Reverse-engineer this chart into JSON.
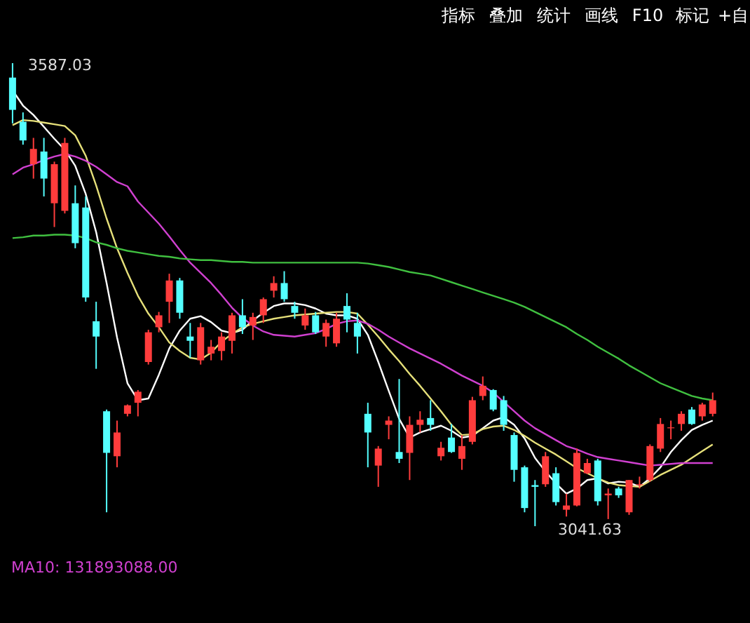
{
  "chart_data": {
    "type": "candlestick",
    "categories": [
      null,
      null,
      null,
      null,
      null,
      null,
      null,
      null,
      null,
      null,
      null,
      null,
      null,
      null,
      null,
      null,
      null,
      null,
      null,
      null,
      null,
      null,
      null,
      null,
      null,
      null,
      null,
      null,
      null,
      null,
      null,
      null,
      null,
      null,
      null,
      null,
      null,
      null,
      null,
      null,
      null,
      null,
      null,
      null,
      null,
      null,
      null,
      null,
      null,
      null,
      null,
      null,
      null,
      null,
      null,
      null,
      null,
      null,
      null,
      null,
      null,
      null,
      null,
      null,
      null,
      null,
      null,
      null
    ],
    "ohlc": [
      [
        3570,
        3587.03,
        3516,
        3532
      ],
      [
        3518,
        3529,
        3491,
        3496
      ],
      [
        3468,
        3499,
        3451,
        3486
      ],
      [
        3483,
        3499,
        3430,
        3451
      ],
      [
        3422,
        3471,
        3394,
        3468
      ],
      [
        3413,
        3499,
        3410,
        3493
      ],
      [
        3422,
        3443,
        3369,
        3375
      ],
      [
        3417,
        3430,
        3306,
        3311
      ],
      [
        3283,
        3306,
        3227,
        3265
      ],
      [
        3177,
        3179,
        3058,
        3128
      ],
      [
        3124,
        3166,
        3111,
        3152
      ],
      [
        3174,
        3185,
        3171,
        3184
      ],
      [
        3187,
        3202,
        3171,
        3200
      ],
      [
        3235,
        3273,
        3232,
        3270
      ],
      [
        3276,
        3294,
        3270,
        3290
      ],
      [
        3306,
        3339,
        3281,
        3331
      ],
      [
        3331,
        3334,
        3286,
        3293
      ],
      [
        3265,
        3281,
        3240,
        3260
      ],
      [
        3237,
        3281,
        3232,
        3276
      ],
      [
        3245,
        3261,
        3237,
        3253
      ],
      [
        3248,
        3270,
        3237,
        3265
      ],
      [
        3260,
        3293,
        3245,
        3290
      ],
      [
        3290,
        3309,
        3268,
        3276
      ],
      [
        3278,
        3293,
        3261,
        3288
      ],
      [
        3290,
        3311,
        3281,
        3309
      ],
      [
        3319,
        3336,
        3311,
        3328
      ],
      [
        3328,
        3342,
        3306,
        3309
      ],
      [
        3301,
        3306,
        3286,
        3293
      ],
      [
        3278,
        3298,
        3273,
        3290
      ],
      [
        3290,
        3294,
        3268,
        3270
      ],
      [
        3265,
        3285,
        3253,
        3281
      ],
      [
        3257,
        3293,
        3253,
        3286
      ],
      [
        3301,
        3316,
        3270,
        3285
      ],
      [
        3281,
        3293,
        3245,
        3265
      ],
      [
        3174,
        3187,
        3111,
        3152
      ],
      [
        3113,
        3136,
        3088,
        3133
      ],
      [
        3161,
        3171,
        3144,
        3166
      ],
      [
        3129,
        3215,
        3116,
        3121
      ],
      [
        3128,
        3171,
        3096,
        3161
      ],
      [
        3161,
        3177,
        3152,
        3167
      ],
      [
        3169,
        3190,
        3154,
        3161
      ],
      [
        3124,
        3141,
        3119,
        3134
      ],
      [
        3146,
        3162,
        3128,
        3129
      ],
      [
        3121,
        3149,
        3108,
        3136
      ],
      [
        3141,
        3194,
        3138,
        3190
      ],
      [
        3195,
        3218,
        3190,
        3207
      ],
      [
        3202,
        3203,
        3177,
        3179
      ],
      [
        3190,
        3195,
        3154,
        3161
      ],
      [
        3149,
        3152,
        3094,
        3108
      ],
      [
        3111,
        3113,
        3058,
        3063
      ],
      [
        3090,
        3096,
        3041.63,
        3088
      ],
      [
        3091,
        3129,
        3088,
        3124
      ],
      [
        3104,
        3111,
        3066,
        3070
      ],
      [
        3061,
        3080,
        3053,
        3066
      ],
      [
        3066,
        3133,
        3065,
        3128
      ],
      [
        3104,
        3121,
        3103,
        3116
      ],
      [
        3119,
        3121,
        3066,
        3071
      ],
      [
        3078,
        3086,
        3050,
        3080
      ],
      [
        3086,
        3088,
        3075,
        3078
      ],
      [
        3058,
        3096,
        3055,
        3096
      ],
      [
        3090,
        3100,
        3086,
        3091
      ],
      [
        3096,
        3138,
        3094,
        3136
      ],
      [
        3133,
        3169,
        3129,
        3162
      ],
      [
        3157,
        3166,
        3144,
        3158
      ],
      [
        3162,
        3177,
        3154,
        3174
      ],
      [
        3179,
        3182,
        3161,
        3162
      ],
      [
        3171,
        3187,
        3166,
        3185
      ],
      [
        3174,
        3199,
        3171,
        3190
      ]
    ],
    "colors": [
      "#54ffff",
      "#54ffff",
      "#ff3c3c",
      "#54ffff",
      "#ff3c3c",
      "#ff3c3c",
      "#54ffff",
      "#54ffff",
      "#54ffff",
      "#54ffff",
      "#ff3c3c",
      "#ff3c3c",
      "#ff3c3c",
      "#ff3c3c",
      "#ff3c3c",
      "#ff3c3c",
      "#54ffff",
      "#54ffff",
      "#ff3c3c",
      "#ff3c3c",
      "#ff3c3c",
      "#ff3c3c",
      "#54ffff",
      "#ff3c3c",
      "#ff3c3c",
      "#ff3c3c",
      "#54ffff",
      "#54ffff",
      "#ff3c3c",
      "#54ffff",
      "#ff3c3c",
      "#ff3c3c",
      "#54ffff",
      "#54ffff",
      "#54ffff",
      "#ff3c3c",
      "#ff3c3c",
      "#54ffff",
      "#ff3c3c",
      "#ff3c3c",
      "#54ffff",
      "#ff3c3c",
      "#54ffff",
      "#ff3c3c",
      "#ff3c3c",
      "#ff3c3c",
      "#54ffff",
      "#54ffff",
      "#54ffff",
      "#54ffff",
      "#54ffff",
      "#ff3c3c",
      "#54ffff",
      "#ff3c3c",
      "#ff3c3c",
      "#ff3c3c",
      "#54ffff",
      "#ff3c3c",
      "#54ffff",
      "#ff3c3c",
      "#ff3c3c",
      "#ff3c3c",
      "#ff3c3c",
      "#ff3c3c",
      "#ff3c3c",
      "#54ffff",
      "#ff3c3c",
      "#ff3c3c"
    ],
    "series": [
      {
        "type": "line",
        "color": "#ffffff",
        "values": [
          3555,
          3537,
          3526,
          3512,
          3498,
          3485,
          3466,
          3433,
          3388,
          3328,
          3264,
          3210,
          3190,
          3192,
          3220,
          3251,
          3272,
          3286,
          3289,
          3282,
          3272,
          3269,
          3273,
          3284,
          3293,
          3301,
          3304,
          3304,
          3302,
          3298,
          3292,
          3290,
          3290,
          3286,
          3267,
          3235,
          3201,
          3168,
          3146,
          3152,
          3156,
          3160,
          3154,
          3146,
          3148,
          3157,
          3166,
          3170,
          3161,
          3145,
          3122,
          3106,
          3092,
          3080,
          3086,
          3096,
          3098,
          3092,
          3094,
          3093,
          3088,
          3098,
          3111,
          3129,
          3143,
          3155,
          3161,
          3166
        ]
      },
      {
        "type": "line",
        "color": "#e6e07a",
        "values": [
          3514,
          3520,
          3519,
          3517,
          3515,
          3513,
          3502,
          3478,
          3443,
          3404,
          3369,
          3340,
          3313,
          3292,
          3276,
          3258,
          3248,
          3240,
          3238,
          3246,
          3259,
          3268,
          3276,
          3280,
          3283,
          3286,
          3288,
          3290,
          3291,
          3292,
          3293,
          3294,
          3294,
          3292,
          3279,
          3265,
          3250,
          3236,
          3221,
          3207,
          3192,
          3177,
          3161,
          3149,
          3150,
          3156,
          3159,
          3160,
          3155,
          3148,
          3140,
          3133,
          3126,
          3118,
          3110,
          3104,
          3098,
          3093,
          3090,
          3089,
          3088,
          3095,
          3102,
          3108,
          3114,
          3122,
          3130,
          3138
        ]
      },
      {
        "type": "line",
        "color": "#d040d0",
        "values": [
          3456,
          3464,
          3468,
          3473,
          3477,
          3480,
          3477,
          3472,
          3465,
          3456,
          3447,
          3442,
          3424,
          3411,
          3398,
          3383,
          3367,
          3352,
          3340,
          3328,
          3314,
          3299,
          3287,
          3278,
          3271,
          3267,
          3266,
          3265,
          3267,
          3269,
          3274,
          3280,
          3283,
          3284,
          3280,
          3273,
          3265,
          3258,
          3251,
          3245,
          3239,
          3233,
          3226,
          3219,
          3213,
          3207,
          3199,
          3188,
          3177,
          3166,
          3157,
          3150,
          3143,
          3136,
          3132,
          3127,
          3123,
          3121,
          3119,
          3117,
          3115,
          3113,
          3114,
          3115,
          3116,
          3116,
          3116,
          3116
        ]
      },
      {
        "type": "line",
        "color": "#40c040",
        "values": [
          3381,
          3382,
          3384,
          3384,
          3385,
          3385,
          3384,
          3381,
          3376,
          3373,
          3369,
          3366,
          3364,
          3362,
          3360,
          3359,
          3357,
          3356,
          3355,
          3355,
          3354,
          3353,
          3353,
          3352,
          3352,
          3352,
          3352,
          3352,
          3352,
          3352,
          3352,
          3352,
          3352,
          3352,
          3351,
          3349,
          3347,
          3344,
          3341,
          3339,
          3337,
          3333,
          3329,
          3325,
          3321,
          3317,
          3313,
          3309,
          3305,
          3300,
          3294,
          3288,
          3282,
          3276,
          3268,
          3261,
          3253,
          3246,
          3239,
          3231,
          3224,
          3217,
          3210,
          3205,
          3200,
          3195,
          3192,
          3190
        ]
      }
    ],
    "ylim": [
      2927.6,
      3661.4
    ],
    "tick_labels": false,
    "annotations": [
      "3587.03",
      "3041.63",
      "指标",
      "叠加",
      "统计",
      "画线",
      "F10",
      "标记",
      "+自",
      "MA10: 131893088.00"
    ]
  }
}
